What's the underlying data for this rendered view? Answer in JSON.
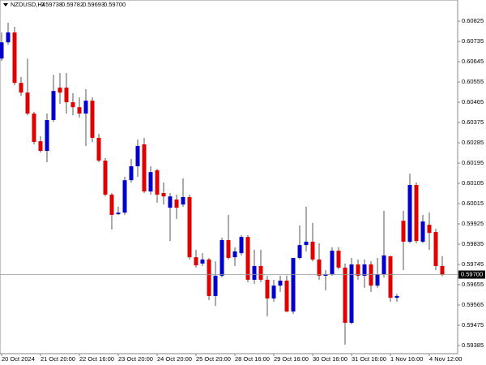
{
  "header": {
    "symbol": "NZDUSD,H4",
    "ohlc": [
      "0.59738",
      "0.59782",
      "0.59693",
      "0.59700"
    ]
  },
  "chart_data": {
    "type": "candlestick",
    "categories": [
      "20 Oct 2024",
      null,
      null,
      null,
      null,
      null,
      "21 Oct 20:00",
      null,
      null,
      null,
      null,
      null,
      "22 Oct 16:00",
      null,
      null,
      null,
      null,
      null,
      "23 Oct 20:00",
      null,
      null,
      null,
      null,
      null,
      "24 Oct 20:00",
      null,
      null,
      null,
      null,
      null,
      "25 Oct 20:00",
      null,
      null,
      null,
      null,
      null,
      "28 Oct 16:00",
      null,
      null,
      null,
      null,
      null,
      "29 Oct 16:00",
      null,
      null,
      null,
      null,
      null,
      "30 Oct 16:00",
      null,
      null,
      null,
      null,
      null,
      "31 Oct 16:00",
      null,
      null,
      null,
      null,
      null,
      "1 Nov 16:00",
      null,
      null,
      null,
      null,
      null,
      "4 Nov 12:00",
      null,
      null
    ],
    "open": [
      0.60659,
      0.60731,
      0.60775,
      0.60551,
      0.60508,
      0.60415,
      0.60292,
      0.60249,
      0.60386,
      0.6053,
      0.6053,
      0.60465,
      0.60443,
      0.60415,
      0.60472,
      0.60307,
      0.60206,
      0.60055,
      0.59968,
      0.59975,
      0.60119,
      0.60181,
      0.60278,
      0.60069,
      0.60163,
      0.60062,
      0.59997,
      0.60033,
      0.60011,
      0.60044,
      0.59777,
      0.59749,
      0.59767,
      0.59605,
      0.59695,
      0.59853,
      0.59777,
      0.59795,
      0.59867,
      0.59677,
      0.59738,
      0.59677,
      0.59594,
      0.59651,
      0.59673,
      0.59536,
      0.59774,
      0.59831,
      0.59846,
      0.59767,
      0.59695,
      0.59702,
      0.59806,
      0.59731,
      0.59486,
      0.59745,
      0.59695,
      0.59745,
      0.59651,
      0.59702,
      0.59781,
      0.59597,
      0.59939,
      0.59846,
      0.60098,
      0.59846,
      0.59921,
      0.59889,
      0.59738
    ],
    "high": [
      0.60775,
      0.60818,
      0.608,
      0.60577,
      0.60659,
      0.60422,
      0.60314,
      0.60415,
      0.60587,
      0.60595,
      0.60595,
      0.60505,
      0.60487,
      0.60523,
      0.60487,
      0.60325,
      0.60217,
      0.60062,
      0.60001,
      0.60134,
      0.60213,
      0.60299,
      0.60307,
      0.60181,
      0.6017,
      0.60109,
      0.60062,
      0.60055,
      0.60127,
      0.60055,
      0.5981,
      0.59795,
      0.59774,
      0.59759,
      0.59864,
      0.59965,
      0.59821,
      0.59875,
      0.59875,
      0.5981,
      0.5981,
      0.59695,
      0.59677,
      0.59695,
      0.59695,
      0.59774,
      0.59918,
      0.60001,
      0.59929,
      0.59839,
      0.5972,
      0.59821,
      0.59821,
      0.59749,
      0.59774,
      0.59767,
      0.59767,
      0.59759,
      0.59774,
      0.59983,
      0.59785,
      0.59615,
      0.59983,
      0.60148,
      0.60109,
      0.59965,
      0.59975,
      0.59903,
      0.59782
    ],
    "low": [
      0.60649,
      0.60721,
      0.60541,
      0.60494,
      0.60407,
      0.60278,
      0.60242,
      0.60199,
      0.60379,
      0.60458,
      0.60415,
      0.60407,
      0.60397,
      0.60271,
      0.60289,
      0.60199,
      0.60047,
      0.599,
      0.59965,
      0.59965,
      0.60109,
      0.60134,
      0.60062,
      0.60055,
      0.60019,
      0.60011,
      0.59849,
      0.59947,
      0.60001,
      0.59767,
      0.59731,
      0.59738,
      0.59587,
      0.59561,
      0.59687,
      0.59767,
      0.59738,
      0.59785,
      0.59666,
      0.59659,
      0.59666,
      0.59515,
      0.59579,
      0.59623,
      0.59533,
      0.59525,
      0.59767,
      0.59803,
      0.59759,
      0.59677,
      0.5963,
      0.59695,
      0.59723,
      0.59389,
      0.59479,
      0.59677,
      0.59641,
      0.59623,
      0.59641,
      0.59687,
      0.59579,
      0.59579,
      0.5972,
      0.59839,
      0.59839,
      0.59839,
      0.5981,
      0.5972,
      0.59693
    ],
    "close": [
      0.60731,
      0.60775,
      0.60551,
      0.60508,
      0.60415,
      0.60289,
      0.60249,
      0.60386,
      0.60515,
      0.60508,
      0.60465,
      0.60443,
      0.60415,
      0.60472,
      0.60307,
      0.60206,
      0.60055,
      0.59965,
      0.59975,
      0.60119,
      0.60181,
      0.60271,
      0.60069,
      0.60155,
      0.60055,
      0.60047,
      0.60047,
      0.59997,
      0.60044,
      0.59777,
      0.59741,
      0.59767,
      0.59605,
      0.59695,
      0.59853,
      0.59774,
      0.59803,
      0.59867,
      0.59677,
      0.59738,
      0.59677,
      0.59594,
      0.59651,
      0.59673,
      0.59536,
      0.59774,
      0.59831,
      0.59846,
      0.59767,
      0.59695,
      0.59702,
      0.59806,
      0.59731,
      0.59486,
      0.59745,
      0.59695,
      0.59745,
      0.59651,
      0.59702,
      0.59785,
      0.59597,
      0.59605,
      0.59846,
      0.60098,
      0.59849,
      0.59936,
      0.59885,
      0.59738,
      0.597
    ],
    "up_color": "#0000cc",
    "down_color": "#e00000",
    "ylim": [
      0.59349,
      0.60919
    ],
    "yticks": [
      0.60825,
      0.60735,
      0.60645,
      0.60555,
      0.60465,
      0.60375,
      0.60285,
      0.60195,
      0.60105,
      0.60015,
      0.59925,
      0.59835,
      0.59745,
      0.59655,
      0.59565,
      0.59475,
      0.59385
    ],
    "current_price": {
      "value": 0.597,
      "label": "0.59700"
    },
    "grid": false
  }
}
